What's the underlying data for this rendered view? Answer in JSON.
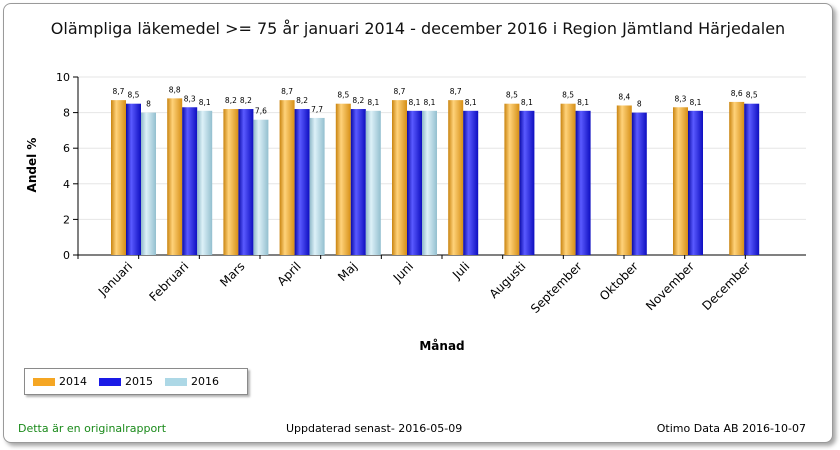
{
  "chart_data": {
    "type": "bar",
    "title": "Olämpliga läkemedel >= 75 år januari 2014 - december 2016 i Region Jämtland Härjedalen",
    "xlabel": "Månad",
    "ylabel": "Andel %",
    "ylim": [
      0,
      10
    ],
    "yticks": [
      "0",
      "2",
      "4",
      "6",
      "8",
      "10"
    ],
    "categories": [
      "Januari",
      "Februari",
      "Mars",
      "April",
      "Maj",
      "Juni",
      "Juli",
      "Augusti",
      "September",
      "Oktober",
      "November",
      "December"
    ],
    "series": [
      {
        "name": "2014",
        "color": "#F5A623",
        "values": [
          8.7,
          8.8,
          8.2,
          8.7,
          8.5,
          8.7,
          8.7,
          8.5,
          8.5,
          8.4,
          8.3,
          8.6
        ],
        "labels": [
          "8,7",
          "8,8",
          "8,2",
          "8,7",
          "8,5",
          "8,7",
          "8,7",
          "8,5",
          "8,5",
          "8,4",
          "8,3",
          "8,6"
        ]
      },
      {
        "name": "2015",
        "color": "#1A1AE6",
        "values": [
          8.5,
          8.3,
          8.2,
          8.2,
          8.2,
          8.1,
          8.1,
          8.1,
          8.1,
          8.0,
          8.1,
          8.5
        ],
        "labels": [
          "8,5",
          "8,3",
          "8,2",
          "8,2",
          "8,2",
          "8,1",
          "8,1",
          "8,1",
          "8,1",
          "8",
          "8,1",
          "8,5"
        ]
      },
      {
        "name": "2016",
        "color": "#ADD8E6",
        "values": [
          8.0,
          8.1,
          7.6,
          7.7,
          8.1,
          8.1,
          null,
          null,
          null,
          null,
          null,
          null
        ],
        "labels": [
          "8",
          "8,1",
          "7,6",
          "7,7",
          "8,1",
          "8,1",
          null,
          null,
          null,
          null,
          null,
          null
        ]
      }
    ],
    "grid": true,
    "legend_position": "bottom-left"
  },
  "footer": {
    "left": "Detta är en originalrapport",
    "middle": "Uppdaterad senast- 2016-05-09",
    "right": "Otimo Data AB 2016-10-07"
  }
}
